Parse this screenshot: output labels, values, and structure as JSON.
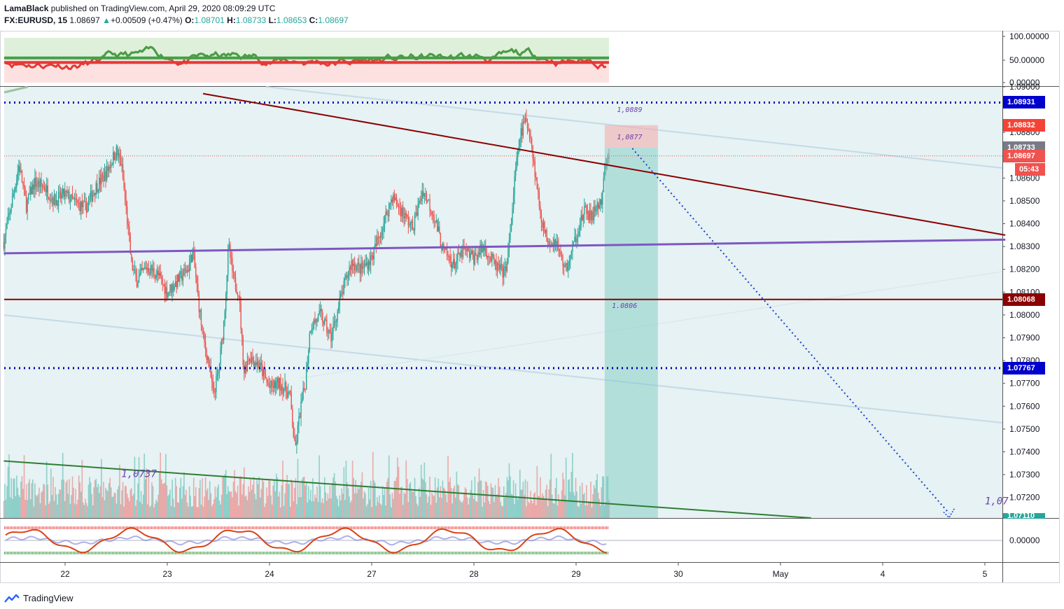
{
  "header": {
    "author": "LamaBlack",
    "published_text": "published on TradingView.com, April 29, 2020 08:09:29 UTC",
    "symbol": "FX:EURUSD, 15",
    "last": "1.08697",
    "change_arrow": "▲",
    "change": "+0.00509 (+0.47%)",
    "o_label": "O:",
    "o_value": "1.08701",
    "h_label": "H:",
    "h_value": "1.08733",
    "l_label": "L:",
    "l_value": "1.08653",
    "c_label": "C:",
    "c_value": "1.08697"
  },
  "footer": {
    "brand": "TradingView"
  },
  "colors": {
    "up": "#26a69a",
    "down": "#ef5350",
    "bg_tint": "#e6f2f3",
    "trend_down": "#8b0000",
    "trend_purple": "#7e57c2",
    "dotted_blue": "#0000b0",
    "green_line": "#2e7d32"
  },
  "chart_data": {
    "type": "candlestick",
    "symbol": "EURUSD",
    "timeframe": "15",
    "ylim": [
      1.0711,
      1.09
    ],
    "y_ticks": [
      "1.09000",
      "1.08800",
      "1.08600",
      "1.08500",
      "1.08400",
      "1.08300",
      "1.08200",
      "1.08100",
      "1.08000",
      "1.07900",
      "1.07800",
      "1.07700",
      "1.07600",
      "1.07500",
      "1.07400",
      "1.07300",
      "1.07200"
    ],
    "y_tick_values": [
      1.09,
      1.088,
      1.086,
      1.085,
      1.084,
      1.083,
      1.082,
      1.081,
      1.08,
      1.079,
      1.078,
      1.077,
      1.076,
      1.075,
      1.074,
      1.073,
      1.072
    ],
    "x_ticks": [
      "22",
      "23",
      "24",
      "27",
      "28",
      "29",
      "30",
      "May",
      "4",
      "5"
    ],
    "x_tick_values": [
      0,
      1,
      2,
      3,
      4,
      5,
      6,
      7,
      8,
      9
    ],
    "price_tags": [
      {
        "label": "1.08931",
        "value": 1.08931,
        "color": "#0000cc"
      },
      {
        "label": "1.08832",
        "value": 1.08832,
        "color": "#f44336"
      },
      {
        "label": "1.08733",
        "value": 1.08733,
        "color": "#787b86"
      },
      {
        "label": "1.08697",
        "value": 1.08697,
        "color": "#ef5350"
      },
      {
        "label": "05:43",
        "value": 1.0864,
        "color": "#ef5350"
      },
      {
        "label": "1.08068",
        "value": 1.08068,
        "color": "#8b0000"
      },
      {
        "label": "1.07767",
        "value": 1.07767,
        "color": "#0000cc"
      },
      {
        "label": "1.07110",
        "value": 1.0711,
        "color": "#26a69a"
      }
    ],
    "annotations": [
      {
        "text": "1,0889",
        "x": 5.4,
        "y": 1.0889
      },
      {
        "text": "1,0877",
        "x": 5.4,
        "y": 1.0877
      },
      {
        "text": "1.0806",
        "x": 5.35,
        "y": 1.0803
      },
      {
        "text": "1,0737",
        "x": 0.55,
        "y": 1.0729
      },
      {
        "text": "1,07",
        "x": 9.0,
        "y": 1.0717
      }
    ],
    "levels": {
      "dotted_upper": 1.08931,
      "dotted_lower": 1.07767,
      "support": 1.08068,
      "current": 1.08697
    },
    "trendlines": [
      {
        "name": "descending-resistance",
        "from": [
          1.35,
          1.0897
        ],
        "to": [
          9.2,
          1.0835
        ]
      },
      {
        "name": "purple-midline",
        "from": [
          -0.6,
          1.0827
        ],
        "to": [
          9.2,
          1.0833
        ]
      },
      {
        "name": "green-lower",
        "from": [
          -0.6,
          1.0736
        ],
        "to": [
          7.3,
          1.0711
        ]
      },
      {
        "name": "projection",
        "from": [
          5.55,
          1.0873
        ],
        "to": [
          8.65,
          1.0713
        ]
      }
    ],
    "position": {
      "entry": 1.08733,
      "stop": 1.08832,
      "target": 1.0711,
      "x_from": 5.28,
      "x_to": 5.8
    },
    "path_points": [
      [
        -0.6,
        1.0832
      ],
      [
        -0.55,
        1.0843
      ],
      [
        -0.45,
        1.0866
      ],
      [
        -0.38,
        1.0848
      ],
      [
        -0.3,
        1.0858
      ],
      [
        -0.2,
        1.0856
      ],
      [
        -0.1,
        1.085
      ],
      [
        0.0,
        1.0853
      ],
      [
        0.1,
        1.0849
      ],
      [
        0.2,
        1.0847
      ],
      [
        0.3,
        1.0856
      ],
      [
        0.4,
        1.0862
      ],
      [
        0.5,
        1.0872
      ],
      [
        0.55,
        1.0866
      ],
      [
        0.6,
        1.0845
      ],
      [
        0.65,
        1.0822
      ],
      [
        0.7,
        1.0815
      ],
      [
        0.8,
        1.0821
      ],
      [
        0.9,
        1.0818
      ],
      [
        1.0,
        1.081
      ],
      [
        1.1,
        1.0815
      ],
      [
        1.2,
        1.082
      ],
      [
        1.25,
        1.0828
      ],
      [
        1.3,
        1.0808
      ],
      [
        1.35,
        1.079
      ],
      [
        1.4,
        1.078
      ],
      [
        1.45,
        1.0765
      ],
      [
        1.5,
        1.0775
      ],
      [
        1.55,
        1.0795
      ],
      [
        1.6,
        1.083
      ],
      [
        1.65,
        1.0815
      ],
      [
        1.7,
        1.081
      ],
      [
        1.75,
        1.0775
      ],
      [
        1.8,
        1.0782
      ],
      [
        1.9,
        1.0778
      ],
      [
        2.0,
        1.0768
      ],
      [
        2.1,
        1.077
      ],
      [
        2.2,
        1.0765
      ],
      [
        2.25,
        1.074
      ],
      [
        2.3,
        1.0758
      ],
      [
        2.35,
        1.077
      ],
      [
        2.4,
        1.0795
      ],
      [
        2.5,
        1.08
      ],
      [
        2.6,
        1.079
      ],
      [
        2.7,
        1.0808
      ],
      [
        2.8,
        1.0823
      ],
      [
        2.9,
        1.082
      ],
      [
        3.0,
        1.0825
      ],
      [
        3.1,
        1.0838
      ],
      [
        3.2,
        1.0852
      ],
      [
        3.3,
        1.0845
      ],
      [
        3.4,
        1.0838
      ],
      [
        3.5,
        1.0855
      ],
      [
        3.6,
        1.0845
      ],
      [
        3.7,
        1.0828
      ],
      [
        3.8,
        1.0822
      ],
      [
        3.9,
        1.0828
      ],
      [
        4.0,
        1.0825
      ],
      [
        4.1,
        1.083
      ],
      [
        4.2,
        1.0822
      ],
      [
        4.3,
        1.0818
      ],
      [
        4.35,
        1.0832
      ],
      [
        4.4,
        1.086
      ],
      [
        4.45,
        1.0878
      ],
      [
        4.5,
        1.0885
      ],
      [
        4.55,
        1.088
      ],
      [
        4.6,
        1.0862
      ],
      [
        4.65,
        1.0845
      ],
      [
        4.7,
        1.0835
      ],
      [
        4.75,
        1.0832
      ],
      [
        4.8,
        1.0833
      ],
      [
        4.85,
        1.0825
      ],
      [
        4.9,
        1.082
      ],
      [
        4.95,
        1.0826
      ],
      [
        5.0,
        1.0835
      ],
      [
        5.05,
        1.0842
      ],
      [
        5.1,
        1.0846
      ],
      [
        5.15,
        1.0842
      ],
      [
        5.2,
        1.0848
      ],
      [
        5.25,
        1.0848
      ],
      [
        5.28,
        1.0864
      ],
      [
        5.33,
        1.087
      ]
    ],
    "oscillator_top": {
      "name": "RSI",
      "y_ticks": [
        "100.00000",
        "50.00000",
        "0.00000"
      ],
      "y_values": [
        100,
        50,
        0
      ]
    },
    "oscillator_bottom": {
      "name": "Stochastic",
      "y_ticks": [
        "0.00000"
      ],
      "y_values": [
        0
      ]
    }
  }
}
